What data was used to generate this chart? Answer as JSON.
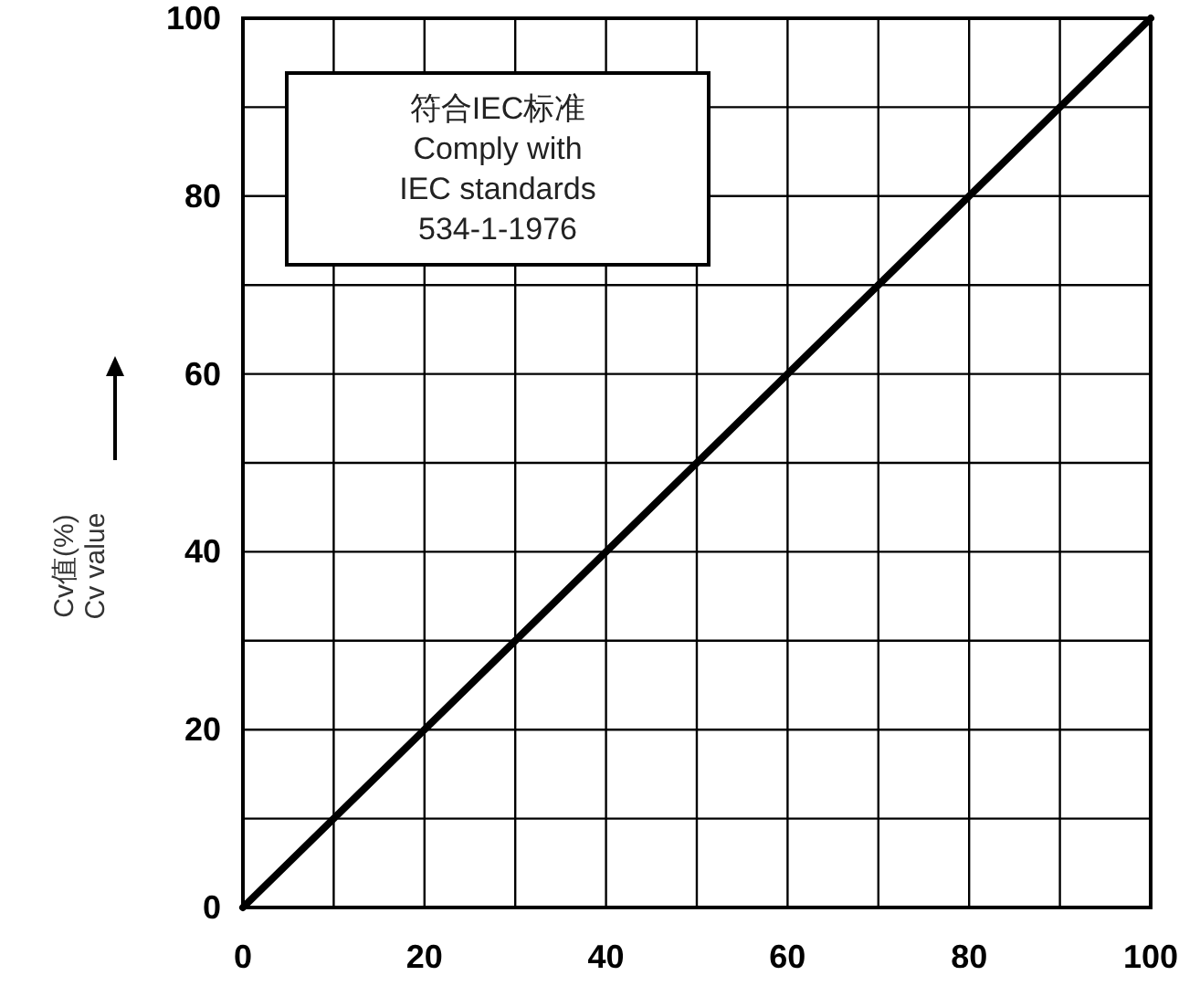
{
  "chart_data": {
    "type": "line",
    "ylabel": "Cv值(%)\nCv value",
    "annotations": [
      "符合IEC标准\nComply with\nIEC standards\n534-1-1976"
    ],
    "x": [
      0,
      100
    ],
    "series": [
      {
        "color": "#000000",
        "values": [
          0,
          100
        ]
      }
    ],
    "xlim": [
      0,
      100
    ],
    "ylim": [
      0,
      100
    ],
    "xticks": [
      0,
      {
        "value": 10,
        "label": null
      },
      20,
      {
        "value": 30,
        "label": null
      },
      40,
      {
        "value": 50,
        "label": null
      },
      60,
      {
        "value": 70,
        "label": null
      },
      80,
      {
        "value": 90,
        "label": null
      },
      100
    ],
    "yticks": [
      0,
      {
        "value": 10,
        "label": null
      },
      20,
      {
        "value": 30,
        "label": null
      },
      40,
      {
        "value": 50,
        "label": null
      },
      60,
      {
        "value": 70,
        "label": null
      },
      80,
      {
        "value": 90,
        "label": null
      },
      100
    ],
    "grid": true
  }
}
